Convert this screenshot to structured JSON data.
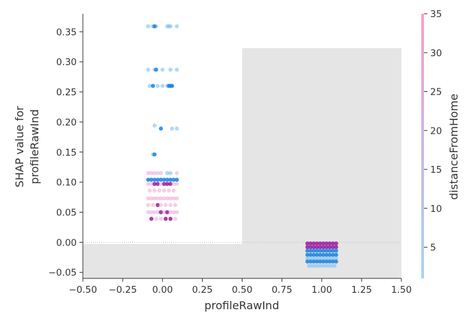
{
  "chart_data": {
    "type": "scatter",
    "title": "",
    "xlabel": "profileRawInd",
    "ylabel_lines": [
      "SHAP value for",
      "profileRawInd"
    ],
    "xlim": [
      -0.5,
      1.5
    ],
    "ylim": [
      -0.06,
      0.38
    ],
    "x_ticks": [
      -0.5,
      -0.25,
      0.0,
      0.25,
      0.5,
      0.75,
      1.0,
      1.25,
      1.5
    ],
    "x_tick_labels": [
      "−0.50",
      "−0.25",
      "0.00",
      "0.25",
      "0.50",
      "0.75",
      "1.00",
      "1.25",
      "1.50"
    ],
    "y_ticks": [
      -0.05,
      0.0,
      0.05,
      0.1,
      0.15,
      0.2,
      0.25,
      0.3,
      0.35
    ],
    "y_tick_labels": [
      "−0.05",
      "0.00",
      "0.05",
      "0.10",
      "0.15",
      "0.20",
      "0.25",
      "0.30",
      "0.35"
    ],
    "zero_line": 0.0,
    "grid": false,
    "histogram": {
      "bins": [
        {
          "x0": -0.5,
          "x1": 0.5,
          "fraction": 0.13
        },
        {
          "x0": 0.5,
          "x1": 1.5,
          "fraction": 0.87
        }
      ],
      "color": "#e5e5e5"
    },
    "colorbar": {
      "label": "distanceFromHome",
      "min": 1,
      "max": 35,
      "ticks": [
        5,
        10,
        15,
        20,
        25,
        30,
        35
      ],
      "tick_labels": [
        "5",
        "10",
        "15",
        "20",
        "25",
        "30",
        "35"
      ],
      "low_color": "#a8d5f0",
      "high_color": "#ff9ec8"
    },
    "series": [
      {
        "category": 0,
        "rows": [
          {
            "y": 0.359,
            "jitter": [
              -0.09,
              -0.06,
              -0.04,
              -0.05,
              0.03,
              0.05,
              0.04,
              0.09
            ],
            "distance": [
              3,
              3,
              3,
              4,
              3,
              3,
              2,
              3
            ]
          },
          {
            "y": 0.287,
            "jitter": [
              -0.09,
              -0.05,
              -0.04,
              0.0,
              0.05,
              0.09
            ],
            "distance": [
              3,
              3,
              4,
              3,
              3,
              3
            ]
          },
          {
            "y": 0.26,
            "jitter": [
              -0.08,
              -0.06,
              -0.03,
              0.0,
              0.03,
              0.04,
              0.05,
              0.06
            ],
            "distance": [
              3,
              4,
              3,
              3,
              3,
              4,
              4,
              4
            ]
          },
          {
            "y": 0.194,
            "jitter": [
              -0.05
            ],
            "distance": [
              3
            ]
          },
          {
            "y": 0.189,
            "jitter": [
              -0.01,
              0.06,
              0.09
            ],
            "distance": [
              4,
              3,
              3
            ]
          },
          {
            "y": 0.146,
            "jitter": [
              -0.06,
              -0.05
            ],
            "distance": [
              3,
              4
            ]
          },
          {
            "y": 0.115,
            "jitter": [
              -0.09,
              -0.07,
              -0.05,
              -0.03,
              -0.01,
              0.03,
              0.05,
              0.09
            ],
            "distance": [
              28,
              30,
              26,
              24,
              30,
              3,
              3,
              24
            ]
          },
          {
            "y": 0.104,
            "jitter": [
              -0.09,
              -0.07,
              -0.05,
              -0.03,
              -0.01,
              0.01,
              0.03,
              0.05,
              0.07,
              0.09
            ],
            "distance": [
              4,
              4,
              4,
              4,
              4,
              4,
              4,
              4,
              4,
              4
            ]
          },
          {
            "y": 0.097,
            "jitter": [
              -0.09,
              -0.07,
              -0.05,
              -0.03,
              -0.01,
              0.01,
              0.03,
              0.05,
              0.07,
              0.09
            ],
            "distance": [
              26,
              24,
              22,
              20,
              25,
              18,
              20,
              23,
              24,
              26
            ]
          },
          {
            "y": 0.086,
            "jitter": [
              -0.08,
              -0.05,
              -0.02,
              0.01,
              0.04,
              0.07
            ],
            "distance": [
              30,
              28,
              30,
              28,
              30,
              26
            ]
          },
          {
            "y": 0.073,
            "jitter": [
              -0.09,
              -0.07,
              -0.05,
              -0.03,
              -0.01,
              0.01,
              0.03,
              0.05,
              0.07,
              0.09
            ],
            "distance": [
              32,
              30,
              28,
              26,
              24,
              28,
              30,
              32,
              30,
              28
            ]
          },
          {
            "y": 0.062,
            "jitter": [
              -0.09,
              -0.06,
              -0.03,
              -0.01,
              0.02,
              0.05,
              0.08
            ],
            "distance": [
              30,
              28,
              22,
              24,
              26,
              28,
              30
            ]
          },
          {
            "y": 0.05,
            "jitter": [
              -0.09,
              -0.07,
              -0.05,
              -0.03,
              -0.01,
              0.01,
              0.03,
              0.05,
              0.07,
              0.09
            ],
            "distance": [
              28,
              26,
              30,
              24,
              22,
              26,
              20,
              30,
              28,
              26
            ]
          },
          {
            "y": 0.039,
            "jitter": [
              -0.07,
              -0.04,
              -0.01,
              0.02,
              0.05,
              0.08
            ],
            "distance": [
              22,
              24,
              26,
              20,
              22,
              24
            ]
          }
        ]
      },
      {
        "category": 1,
        "rows": [
          {
            "y": -0.002,
            "jitter": [
              -0.09,
              -0.07,
              -0.05,
              -0.03,
              -0.01,
              0.01,
              0.03,
              0.05,
              0.07,
              0.09
            ],
            "distance": [
              22,
              22,
              22,
              22,
              22,
              22,
              22,
              22,
              22,
              22
            ]
          },
          {
            "y": -0.008,
            "jitter": [
              -0.09,
              -0.07,
              -0.05,
              -0.03,
              -0.01,
              0.01,
              0.03,
              0.05,
              0.07,
              0.09
            ],
            "distance": [
              20,
              20,
              20,
              20,
              20,
              20,
              20,
              20,
              20,
              20
            ]
          },
          {
            "y": -0.014,
            "jitter": [
              -0.09,
              -0.07,
              -0.05,
              -0.03,
              -0.01,
              0.01,
              0.03,
              0.05,
              0.07,
              0.09
            ],
            "distance": [
              4,
              4,
              4,
              4,
              4,
              4,
              4,
              4,
              4,
              4
            ]
          },
          {
            "y": -0.021,
            "jitter": [
              -0.09,
              -0.07,
              -0.05,
              -0.03,
              -0.01,
              0.01,
              0.03,
              0.05,
              0.07,
              0.09
            ],
            "distance": [
              4,
              4,
              4,
              4,
              4,
              4,
              4,
              4,
              4,
              4
            ]
          },
          {
            "y": -0.027,
            "jitter": [
              -0.09,
              -0.07,
              -0.05,
              -0.03,
              -0.01,
              0.01,
              0.03,
              0.05,
              0.07,
              0.09
            ],
            "distance": [
              3,
              3,
              3,
              3,
              3,
              3,
              3,
              3,
              3,
              3
            ]
          },
          {
            "y": -0.032,
            "jitter": [
              -0.09,
              -0.07,
              -0.05,
              -0.03,
              -0.01,
              0.01,
              0.03,
              0.05,
              0.07,
              0.09
            ],
            "distance": [
              4,
              4,
              4,
              4,
              4,
              4,
              4,
              4,
              4,
              4
            ]
          },
          {
            "y": -0.039,
            "jitter": [
              -0.08,
              -0.06,
              -0.04,
              -0.02,
              0.0,
              0.02,
              0.04,
              0.06,
              0.08
            ],
            "distance": [
              3,
              3,
              3,
              3,
              3,
              3,
              3,
              3,
              3
            ]
          }
        ]
      }
    ]
  }
}
